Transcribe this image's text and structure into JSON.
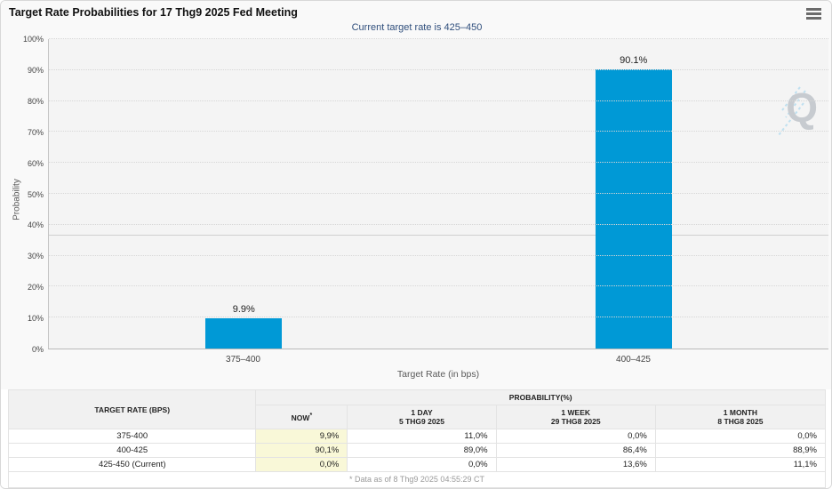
{
  "header": {
    "title": "Target Rate Probabilities for 17 Thg9 2025 Fed Meeting"
  },
  "chart": {
    "subtitle": "Current target rate is 425–450",
    "y_axis_title": "Probability",
    "x_axis_title": "Target Rate (in bps)",
    "y_ticks": [
      "0%",
      "10%",
      "20%",
      "30%",
      "40%",
      "50%",
      "60%",
      "70%",
      "80%",
      "90%",
      "100%"
    ],
    "watermark_letter": "Q",
    "colors": {
      "bar": "#0099d6",
      "subtitle_text": "#2f4e7c",
      "now_column_highlight": "#f9f8d8"
    }
  },
  "chart_data": {
    "type": "bar",
    "title": "Target Rate Probabilities for 17 Thg9 2025 Fed Meeting",
    "subtitle": "Current target rate is 425–450",
    "categories": [
      "375–400",
      "400–425"
    ],
    "values": [
      9.9,
      90.1
    ],
    "value_labels": [
      "9.9%",
      "90.1%"
    ],
    "xlabel": "Target Rate (in bps)",
    "ylabel": "Probability",
    "ylim": [
      0,
      100
    ],
    "y_tick_step": 10,
    "grid": "dotted horizontal lines every 10%",
    "legend": "none"
  },
  "table": {
    "rate_header": "TARGET RATE (BPS)",
    "group_header": "PROBABILITY(%)",
    "now_header": "NOW",
    "now_sup": "*",
    "col_headers": [
      {
        "line1": "1 DAY",
        "line2": "5 THG9 2025"
      },
      {
        "line1": "1 WEEK",
        "line2": "29 THG8 2025"
      },
      {
        "line1": "1 MONTH",
        "line2": "8 THG8 2025"
      }
    ],
    "rows": [
      {
        "rate": "375-400",
        "now": "9,9%",
        "day": "11,0%",
        "week": "0,0%",
        "month": "0,0%"
      },
      {
        "rate": "400-425",
        "now": "90,1%",
        "day": "89,0%",
        "week": "86,4%",
        "month": "88,9%"
      },
      {
        "rate": "425-450 (Current)",
        "now": "0,0%",
        "day": "0,0%",
        "week": "13,6%",
        "month": "11,1%"
      }
    ],
    "footnote": "* Data as of 8 Thg9 2025 04:55:29 CT"
  }
}
